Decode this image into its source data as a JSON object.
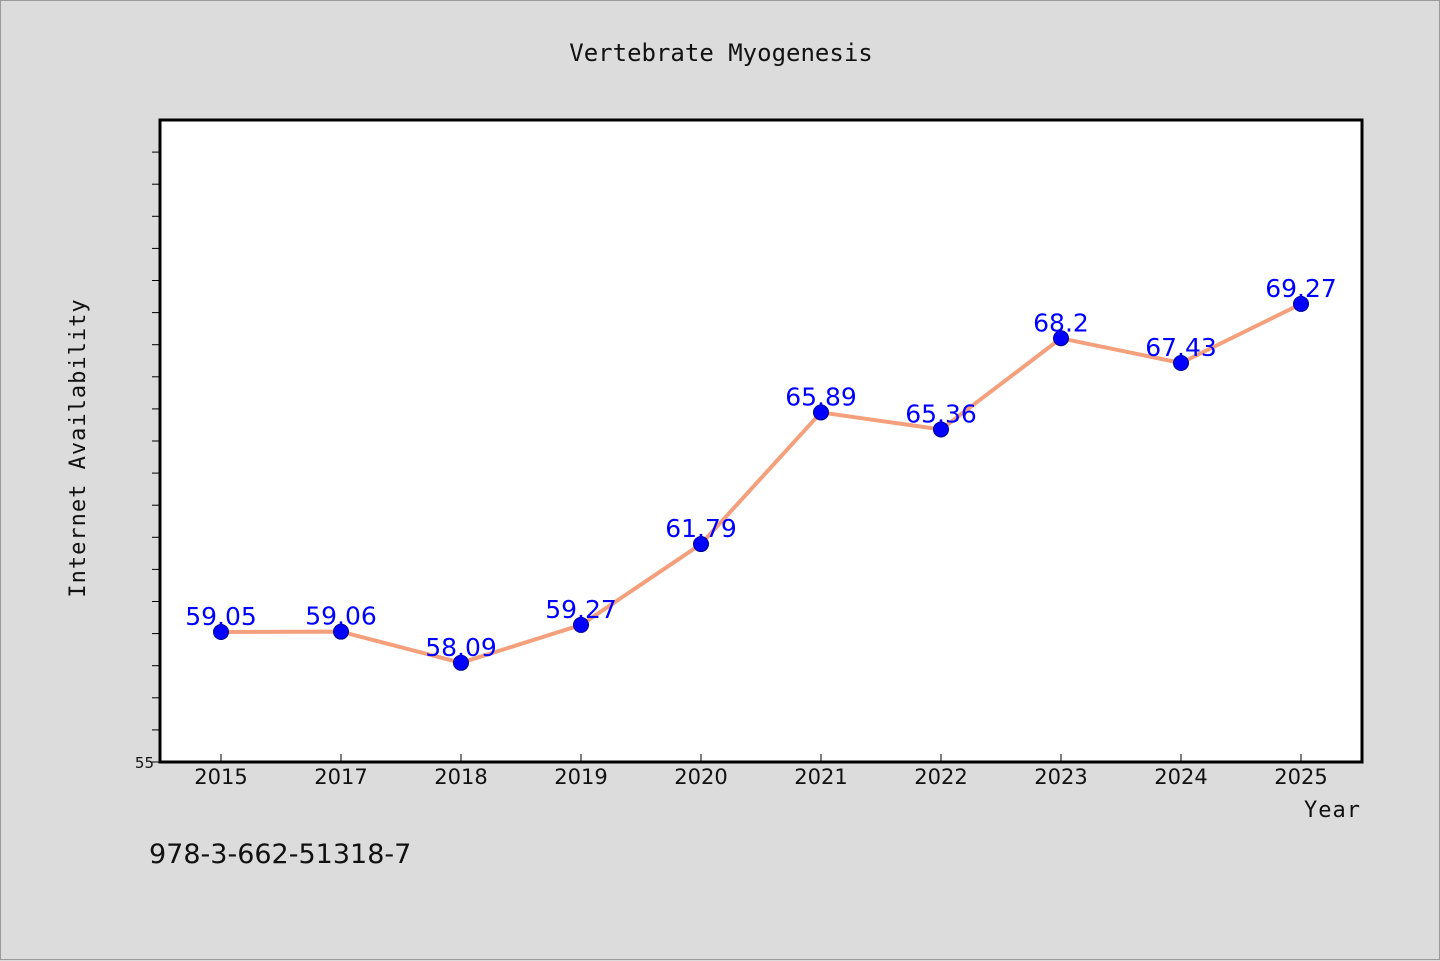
{
  "colors": {
    "background": "#dcdcdc",
    "plot_background": "#ffffff",
    "line": "#f4a07c",
    "marker": "#0000ff",
    "data_label": "#0000ff"
  },
  "footer": {
    "isbn": "978-3-662-51318-7"
  },
  "chart_data": {
    "type": "line",
    "title": "Vertebrate Myogenesis",
    "xlabel": "Year",
    "ylabel": "Internet Availability",
    "categories": [
      "2015",
      "2017",
      "2018",
      "2019",
      "2020",
      "2021",
      "2022",
      "2023",
      "2024",
      "2025"
    ],
    "series": [
      {
        "values": [
          59.05,
          59.06,
          58.09,
          59.27,
          61.79,
          65.89,
          65.36,
          68.2,
          67.43,
          69.27
        ],
        "labels": [
          "59.05",
          "59.06",
          "58.09",
          "59.27",
          "61.79",
          "65.89",
          "65.36",
          "68.2",
          "67.43",
          "69.27"
        ]
      }
    ],
    "ylim": [
      55,
      75
    ],
    "y_tick_labels": [
      "55"
    ],
    "y_minor_step": 1,
    "grid": false,
    "legend": "none"
  }
}
